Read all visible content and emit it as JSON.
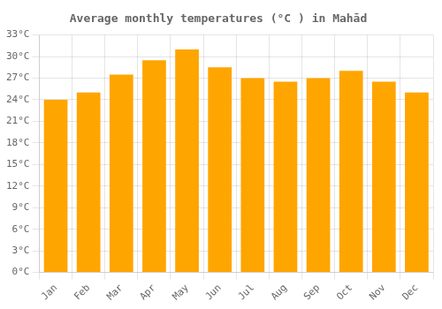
{
  "chart_data": {
    "type": "bar",
    "title": "Average monthly temperatures (°C ) in Mahād",
    "categories": [
      "Jan",
      "Feb",
      "Mar",
      "Apr",
      "May",
      "Jun",
      "Jul",
      "Aug",
      "Sep",
      "Oct",
      "Nov",
      "Dec"
    ],
    "values": [
      24.0,
      25.0,
      27.5,
      29.5,
      31.0,
      28.5,
      27.0,
      26.5,
      27.0,
      28.0,
      26.5,
      25.0
    ],
    "color": "#FFA500",
    "ylim": [
      0,
      33
    ],
    "yticks": [
      {
        "value": 0,
        "label": "0°C"
      },
      {
        "value": 3,
        "label": "3°C"
      },
      {
        "value": 6,
        "label": "6°C"
      },
      {
        "value": 9,
        "label": "9°C"
      },
      {
        "value": 12,
        "label": "12°C"
      },
      {
        "value": 15,
        "label": "15°C"
      },
      {
        "value": 18,
        "label": "18°C"
      },
      {
        "value": 21,
        "label": "21°C"
      },
      {
        "value": 24,
        "label": "24°C"
      },
      {
        "value": 27,
        "label": "27°C"
      },
      {
        "value": 30,
        "label": "30°C"
      },
      {
        "value": 33,
        "label": "33°C"
      }
    ],
    "grid": true
  }
}
